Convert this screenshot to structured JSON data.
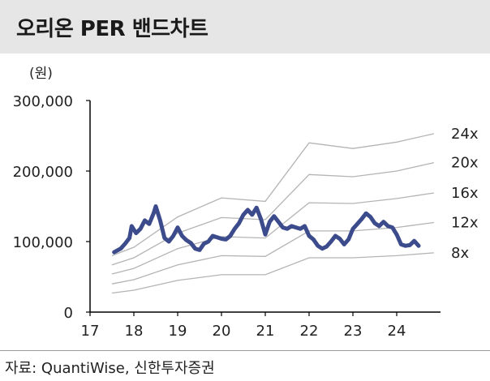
{
  "title": "오리온 PER 밴드차트",
  "unit_label": "(원)",
  "source": "자료: QuantiWise, 신한투자증권",
  "colors": {
    "price": "#3c4b8c",
    "band": "#b4b4b4",
    "axis": "#000000",
    "title_bg": "#e6e6e6"
  },
  "chart_data": {
    "type": "line",
    "xlim": [
      17,
      25
    ],
    "ylim": [
      0,
      300000
    ],
    "x_ticks": [
      17,
      18,
      19,
      20,
      21,
      22,
      23,
      24
    ],
    "x_tick_labels": [
      "17",
      "18",
      "19",
      "20",
      "21",
      "22",
      "23",
      "24"
    ],
    "y_ticks": [
      0,
      100000,
      200000,
      300000
    ],
    "y_tick_labels": [
      "0",
      "100,000",
      "200,000",
      "300,000"
    ],
    "bands": [
      {
        "name": "8x",
        "x": [
          17.5,
          18,
          19,
          20,
          21,
          22,
          23,
          24,
          24.85
        ],
        "values": [
          27000,
          31000,
          45000,
          53000,
          53000,
          77000,
          77000,
          80000,
          84000
        ]
      },
      {
        "name": "12x",
        "x": [
          17.5,
          18,
          19,
          20,
          21,
          22,
          23,
          24,
          24.85
        ],
        "values": [
          40000,
          46000,
          67000,
          80000,
          79000,
          115000,
          115000,
          120000,
          127000
        ]
      },
      {
        "name": "16x",
        "x": [
          17.5,
          18,
          19,
          20,
          21,
          22,
          23,
          24,
          24.85
        ],
        "values": [
          54000,
          62000,
          90000,
          107000,
          105000,
          155000,
          154000,
          161000,
          169000
        ]
      },
      {
        "name": "20x",
        "x": [
          17.5,
          18,
          19,
          20,
          21,
          22,
          23,
          24,
          24.85
        ],
        "values": [
          67000,
          77000,
          112000,
          134000,
          131000,
          195000,
          192000,
          200000,
          212000
        ]
      },
      {
        "name": "24x",
        "x": [
          17.5,
          18,
          19,
          20,
          21,
          22,
          23,
          24,
          24.85
        ],
        "values": [
          80000,
          92000,
          135000,
          162000,
          157000,
          240000,
          232000,
          241000,
          253000
        ]
      }
    ],
    "price": {
      "x": [
        17.55,
        17.7,
        17.8,
        17.9,
        17.95,
        18.05,
        18.15,
        18.25,
        18.35,
        18.45,
        18.5,
        18.6,
        18.7,
        18.8,
        18.9,
        19.0,
        19.1,
        19.2,
        19.3,
        19.4,
        19.5,
        19.6,
        19.7,
        19.8,
        19.9,
        20.0,
        20.1,
        20.2,
        20.3,
        20.4,
        20.5,
        20.6,
        20.7,
        20.8,
        20.9,
        21.0,
        21.1,
        21.2,
        21.3,
        21.4,
        21.5,
        21.6,
        21.7,
        21.8,
        21.9,
        22.0,
        22.1,
        22.2,
        22.3,
        22.4,
        22.5,
        22.6,
        22.7,
        22.8,
        22.9,
        23.0,
        23.1,
        23.2,
        23.3,
        23.4,
        23.5,
        23.6,
        23.7,
        23.8,
        23.9,
        24.0,
        24.1,
        24.2,
        24.3,
        24.4,
        24.5
      ],
      "values": [
        85000,
        90000,
        97000,
        105000,
        122000,
        112000,
        118000,
        130000,
        125000,
        140000,
        150000,
        130000,
        105000,
        100000,
        108000,
        120000,
        108000,
        102000,
        98000,
        90000,
        88000,
        97000,
        100000,
        108000,
        106000,
        104000,
        103000,
        108000,
        118000,
        126000,
        138000,
        145000,
        138000,
        148000,
        132000,
        110000,
        128000,
        136000,
        128000,
        120000,
        118000,
        122000,
        120000,
        118000,
        122000,
        108000,
        103000,
        94000,
        90000,
        93000,
        100000,
        108000,
        104000,
        96000,
        103000,
        118000,
        125000,
        132000,
        140000,
        135000,
        126000,
        122000,
        128000,
        122000,
        120000,
        110000,
        96000,
        94000,
        95000,
        101000,
        94000
      ]
    }
  }
}
